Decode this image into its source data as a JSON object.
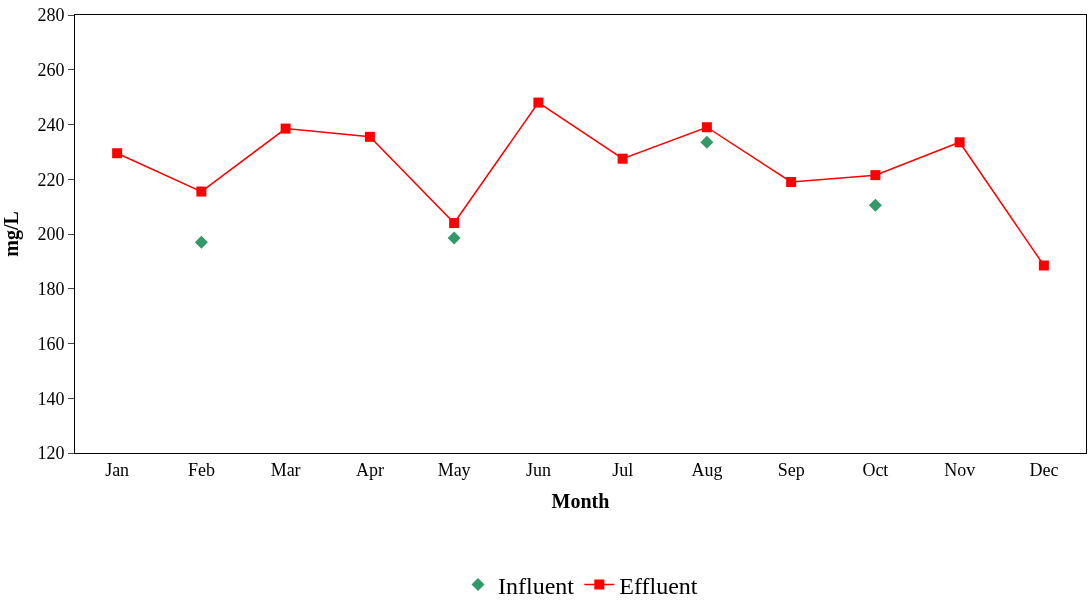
{
  "chart_data": {
    "type": "line",
    "xlabel": "Month",
    "ylabel": "mg/L",
    "categories": [
      "Jan",
      "Feb",
      "Mar",
      "Apr",
      "May",
      "Jun",
      "Jul",
      "Aug",
      "Sep",
      "Oct",
      "Nov",
      "Dec"
    ],
    "series": [
      {
        "name": "Influent",
        "type": "scatter",
        "color": "#339966",
        "marker": "diamond",
        "values": [
          null,
          197,
          null,
          null,
          198.5,
          null,
          null,
          233.5,
          null,
          210.5,
          null,
          null
        ]
      },
      {
        "name": "Effluent",
        "color": "#ff0000",
        "marker": "square",
        "values": [
          229.5,
          215.5,
          238.5,
          235.5,
          204,
          248,
          227.5,
          239,
          219,
          221.5,
          233.5,
          188.5
        ]
      }
    ],
    "ylim": [
      120,
      280
    ],
    "yticks": [
      120,
      140,
      160,
      180,
      200,
      220,
      240,
      260,
      280
    ],
    "legend": "bottom",
    "line_style": "solid"
  }
}
